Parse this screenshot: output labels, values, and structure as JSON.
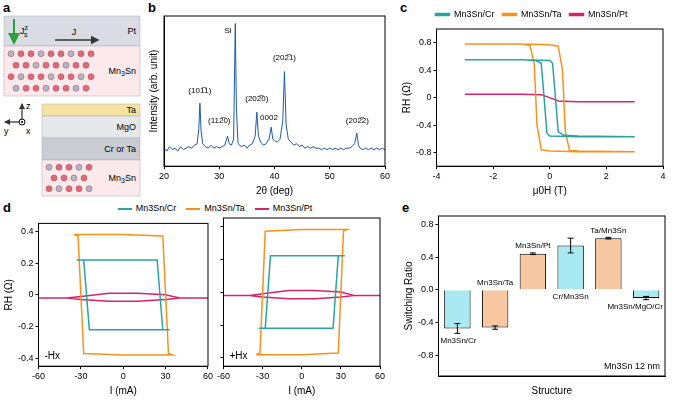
{
  "diagram": {
    "panel": "a",
    "top_stack": [
      "Pt",
      "Mn3Sn"
    ],
    "bottom_stack": [
      "Ta",
      "MgO",
      "Cr or Ta",
      "Mn3Sn"
    ],
    "current": "J",
    "spin_current": {
      "base": "J",
      "sup": "z",
      "sub": "s"
    },
    "axes": {
      "z": "z",
      "y": "y",
      "x": "x"
    }
  },
  "chart_data": [
    {
      "panel": "b",
      "type": "line",
      "x_label": "2θ (deg)",
      "y_label": "Intensity (arb. unit)",
      "xlim": [
        20,
        60
      ],
      "xticks": [
        20,
        30,
        40,
        50,
        60
      ],
      "ylim": [
        0,
        1
      ],
      "tick_labels": "x",
      "grid": false,
      "color": "#1f5aa6",
      "x": [
        20,
        20.5,
        21,
        21.5,
        22,
        22.5,
        23,
        23.5,
        24,
        24.5,
        25,
        25.5,
        26,
        26.3,
        26.5,
        26.7,
        27,
        27.5,
        28,
        28.5,
        29,
        29.5,
        30,
        30.5,
        31,
        31.5,
        31.8,
        32.2,
        32.6,
        32.9,
        33.1,
        33.4,
        34,
        34.5,
        35,
        35.5,
        36,
        36.5,
        36.8,
        37.1,
        37.5,
        38,
        38.5,
        39,
        39.4,
        39.7,
        40,
        40.5,
        41,
        41.5,
        41.8,
        42.1,
        42.5,
        43,
        43.5,
        44,
        44.5,
        45,
        45.5,
        46,
        46.5,
        47,
        47.5,
        48,
        48.5,
        49,
        49.5,
        50,
        50.5,
        51,
        51.5,
        52,
        52.5,
        53,
        53.5,
        54,
        54.5,
        54.9,
        55.2,
        55.5,
        56,
        56.5,
        57,
        57.5,
        58,
        58.5,
        59,
        59.5,
        60
      ],
      "values": [
        0.12,
        0.1,
        0.13,
        0.11,
        0.12,
        0.1,
        0.13,
        0.11,
        0.12,
        0.13,
        0.12,
        0.14,
        0.15,
        0.25,
        0.42,
        0.24,
        0.15,
        0.13,
        0.12,
        0.14,
        0.12,
        0.13,
        0.12,
        0.13,
        0.14,
        0.2,
        0.15,
        0.14,
        0.18,
        0.95,
        0.4,
        0.15,
        0.13,
        0.14,
        0.12,
        0.14,
        0.15,
        0.2,
        0.36,
        0.2,
        0.16,
        0.14,
        0.15,
        0.18,
        0.26,
        0.18,
        0.17,
        0.16,
        0.18,
        0.3,
        0.63,
        0.28,
        0.18,
        0.16,
        0.14,
        0.15,
        0.13,
        0.14,
        0.12,
        0.13,
        0.12,
        0.13,
        0.12,
        0.12,
        0.11,
        0.12,
        0.11,
        0.12,
        0.11,
        0.12,
        0.11,
        0.12,
        0.11,
        0.12,
        0.12,
        0.13,
        0.15,
        0.22,
        0.14,
        0.12,
        0.11,
        0.12,
        0.11,
        0.12,
        0.11,
        0.12,
        0.11,
        0.12,
        0.11
      ],
      "annotations": [
        {
          "text": "(101̅1)",
          "x": 26.5,
          "y": 0.5
        },
        {
          "text": "(112̅0)",
          "x": 30.0,
          "y": 0.3
        },
        {
          "text": "Si",
          "x": 31.6,
          "y": 0.9
        },
        {
          "text": "(202̅0)",
          "x": 36.8,
          "y": 0.45
        },
        {
          "text": "0002",
          "x": 39.0,
          "y": 0.32
        },
        {
          "text": "(202̅1)",
          "x": 41.8,
          "y": 0.72
        },
        {
          "text": "(202̅2)",
          "x": 55.0,
          "y": 0.3
        }
      ]
    },
    {
      "panel": "c",
      "type": "line",
      "x_label": "μ0H (T)",
      "y_label": "RH (Ω)",
      "xlim": [
        -4,
        4
      ],
      "xticks": [
        -4,
        -2,
        0,
        2,
        4
      ],
      "ylim": [
        -1,
        1
      ],
      "yticks": [
        -0.8,
        -0.4,
        0,
        0.4,
        0.8
      ],
      "grid": false,
      "legend": "top",
      "series": [
        {
          "name": "Mn3Sn/Cr",
          "color": "#2aa3a3",
          "x": [
            -3,
            -1,
            0,
            0.1,
            0.2,
            0.3,
            0.5,
            1,
            3,
            1,
            0,
            -0.1,
            -0.2,
            -0.3,
            -0.5,
            -1,
            -3
          ],
          "values": [
            0.55,
            0.55,
            0.54,
            0.5,
            0,
            -0.5,
            -0.55,
            -0.56,
            -0.57,
            -0.57,
            -0.56,
            -0.52,
            0,
            0.5,
            0.54,
            0.55,
            0.55
          ]
        },
        {
          "name": "Mn3Sn/Ta",
          "color": "#f5921e",
          "x": [
            -3,
            -1,
            0,
            0.3,
            0.45,
            0.55,
            0.7,
            1,
            3,
            1,
            0,
            -0.3,
            -0.45,
            -0.55,
            -0.7,
            -1,
            -3
          ],
          "values": [
            0.78,
            0.78,
            0.77,
            0.75,
            0.4,
            -0.5,
            -0.77,
            -0.78,
            -0.79,
            -0.79,
            -0.78,
            -0.76,
            -0.4,
            0.5,
            0.76,
            0.78,
            0.78
          ]
        },
        {
          "name": "Mn3Sn/Pt",
          "color": "#d4246c",
          "x": [
            -3,
            -1,
            -0.3,
            0,
            0.3,
            1,
            3,
            1,
            0.3,
            0,
            -0.3,
            -1,
            -3
          ],
          "values": [
            0.05,
            0.05,
            0.04,
            0.0,
            -0.05,
            -0.06,
            -0.06,
            -0.06,
            -0.05,
            0.0,
            0.04,
            0.05,
            0.05
          ]
        }
      ]
    },
    {
      "panel": "d",
      "type": "line",
      "x_label": "I (mA)",
      "y_label": "RH (Ω)",
      "xlim": [
        -60,
        60
      ],
      "xticks": [
        -60,
        -30,
        0,
        30,
        60
      ],
      "ylim": [
        -0.45,
        0.45
      ],
      "yticks": [
        -0.4,
        -0.2,
        0,
        0.2,
        0.4
      ],
      "grid": false,
      "legend": "top",
      "series": [
        {
          "name": "Mn3Sn/Cr",
          "color": "#2aa3a3"
        },
        {
          "name": "Mn3Sn/Ta",
          "color": "#f5921e"
        },
        {
          "name": "Mn3Sn/Pt",
          "color": "#d4246c"
        }
      ],
      "subplots": [
        {
          "annotation": "-Hx",
          "series": [
            {
              "x": [
                -33,
                0,
                24,
                26,
                28,
                33,
                33,
                0,
                -24,
                -26,
                -28,
                -33
              ],
              "values": [
                0.22,
                0.22,
                0.22,
                0,
                -0.22,
                -0.22,
                -0.22,
                -0.22,
                -0.22,
                0,
                0.22,
                0.22
              ]
            },
            {
              "x": [
                -35,
                0,
                28,
                30,
                32,
                35,
                35,
                0,
                -28,
                -30,
                -32,
                -35
              ],
              "values": [
                0.38,
                0.38,
                0.37,
                0,
                -0.37,
                -0.38,
                -0.38,
                -0.38,
                -0.37,
                0,
                0.37,
                0.38
              ]
            },
            {
              "x": [
                -60,
                -40,
                -30,
                -10,
                10,
                30,
                40,
                60,
                60,
                40,
                30,
                10,
                -10,
                -30,
                -40,
                -60
              ],
              "values": [
                -0.02,
                -0.02,
                -0.01,
                0.01,
                0.01,
                0.0,
                -0.02,
                -0.02,
                -0.02,
                -0.02,
                -0.03,
                -0.04,
                -0.04,
                -0.03,
                -0.02,
                -0.02
              ]
            }
          ]
        },
        {
          "annotation": "+Hx",
          "series": [
            {
              "x": [
                -33,
                0,
                24,
                26,
                28,
                33,
                33,
                0,
                -24,
                -26,
                -28,
                -33
              ],
              "values": [
                -0.22,
                -0.22,
                -0.22,
                0,
                0.22,
                0.22,
                0.22,
                0.22,
                0.22,
                0,
                -0.22,
                -0.22
              ]
            },
            {
              "x": [
                -35,
                0,
                28,
                30,
                32,
                35,
                35,
                0,
                -28,
                -30,
                -32,
                -35
              ],
              "values": [
                -0.38,
                -0.38,
                -0.37,
                0,
                0.37,
                0.38,
                0.38,
                0.38,
                0.37,
                0,
                -0.37,
                -0.38
              ]
            },
            {
              "x": [
                -60,
                -40,
                -30,
                -10,
                10,
                30,
                40,
                60,
                60,
                40,
                30,
                10,
                -10,
                -30,
                -40,
                -60
              ],
              "values": [
                -0.02,
                -0.02,
                -0.03,
                -0.04,
                -0.04,
                -0.03,
                -0.02,
                -0.02,
                -0.02,
                -0.02,
                0.0,
                0.01,
                0.01,
                -0.01,
                -0.02,
                -0.02
              ]
            }
          ]
        }
      ]
    },
    {
      "panel": "e",
      "type": "bar",
      "x_label": "Structure",
      "y_label": "Switching Ratio",
      "categories": [
        "Mn3Sn/Cr",
        "Mn3Sn/Ta",
        "Mn3Sn/Pt",
        "Cr/Mn3Sn",
        "Ta/Mn3Sn",
        "Mn3Sn/MgO/Cr"
      ],
      "values": [
        -0.47,
        -0.46,
        0.44,
        0.54,
        0.63,
        -0.1
      ],
      "errors": [
        0.06,
        0.02,
        0.01,
        0.09,
        0.01,
        0.02
      ],
      "colors": [
        "#a9eaf2",
        "#f6c7a1",
        "#f6c7a1",
        "#a9eaf2",
        "#f6c7a1",
        "#a9eaf2"
      ],
      "ylim": [
        -1.05,
        0.9
      ],
      "yticks": [
        -0.8,
        -0.4,
        {
          "value": 0,
          "label": "0.0"
        },
        0.4,
        0.8
      ],
      "tick_labels": "y",
      "grid": false,
      "annotations": [
        {
          "text": "Mn3Sn 12 nm"
        }
      ]
    }
  ]
}
